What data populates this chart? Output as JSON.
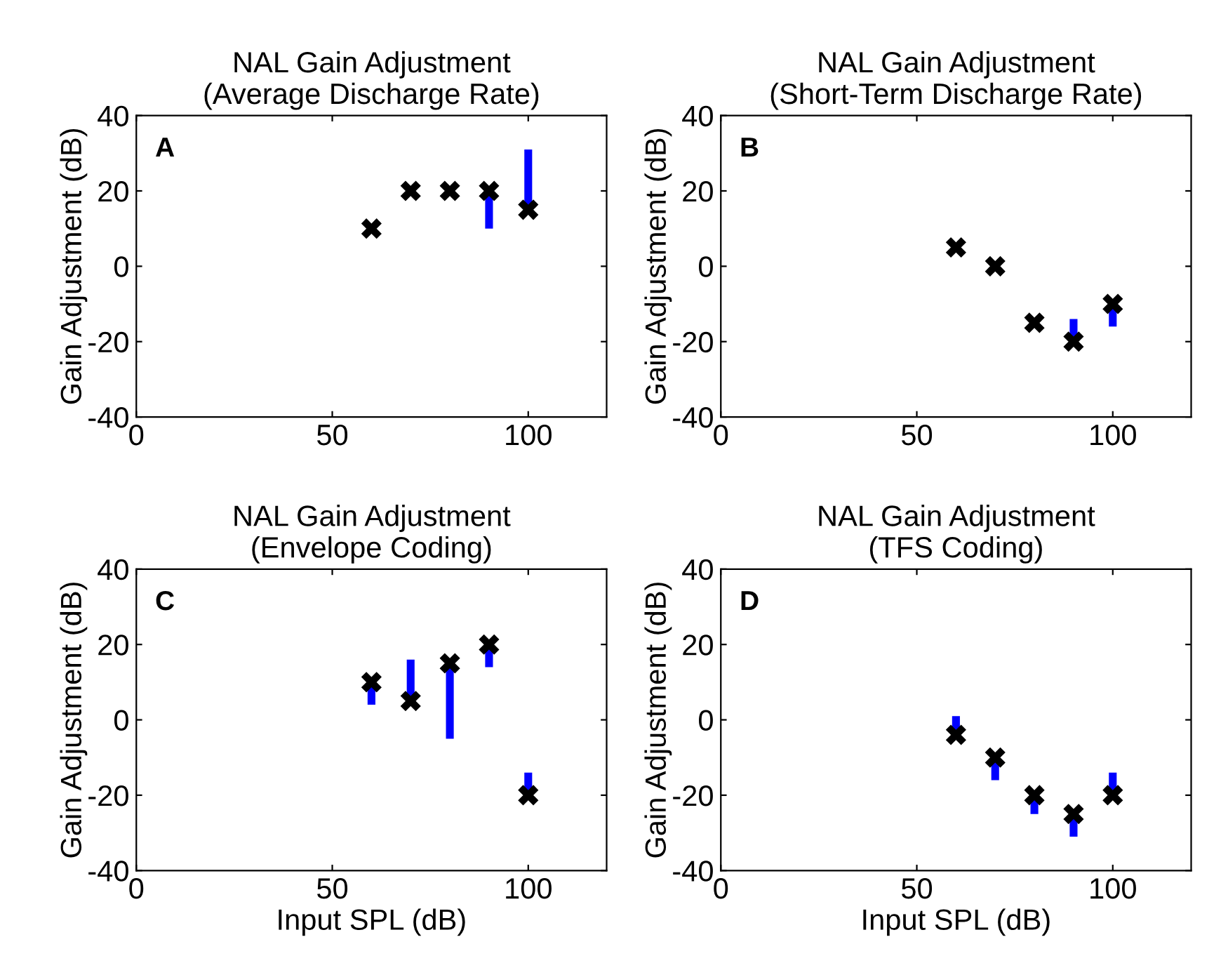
{
  "chart_data": [
    {
      "type": "scatter",
      "title": "NAL Gain Adjustment\n(Average Discharge Rate)",
      "ylabel": "Gain Adjustment (dB)",
      "annotations": [
        "A"
      ],
      "x": [
        60,
        70,
        80,
        90,
        100
      ],
      "marker": "cross",
      "color": "#000000",
      "values": [
        10,
        20,
        20,
        20,
        15
      ],
      "errors": [
        null,
        null,
        null,
        [
          10,
          20
        ],
        [
          15,
          31
        ]
      ],
      "xlim": [
        0,
        120
      ],
      "xticks": [
        0,
        50,
        100
      ],
      "ylim": [
        -40,
        40
      ],
      "yticks": [
        -40,
        -20,
        0,
        20,
        40
      ],
      "grid": false,
      "legend": false
    },
    {
      "type": "scatter",
      "title": "NAL Gain Adjustment\n(Short-Term Discharge Rate)",
      "ylabel": "Gain Adjustment (dB)",
      "annotations": [
        "B"
      ],
      "x": [
        60,
        70,
        80,
        90,
        100
      ],
      "marker": "cross",
      "color": "#000000",
      "values": [
        5,
        0,
        -15,
        -20,
        -10
      ],
      "errors": [
        null,
        null,
        null,
        [
          -20,
          -14
        ],
        [
          -16,
          -10
        ]
      ],
      "xlim": [
        0,
        120
      ],
      "xticks": [
        0,
        50,
        100
      ],
      "ylim": [
        -40,
        40
      ],
      "yticks": [
        -40,
        -20,
        0,
        20,
        40
      ],
      "grid": false,
      "legend": false
    },
    {
      "type": "scatter",
      "title": "NAL Gain Adjustment\n(Envelope Coding)",
      "xlabel": "Input SPL (dB)",
      "ylabel": "Gain Adjustment (dB)",
      "annotations": [
        "C"
      ],
      "x": [
        60,
        70,
        80,
        90,
        100
      ],
      "marker": "cross",
      "color": "#000000",
      "values": [
        10,
        5,
        15,
        20,
        -20
      ],
      "errors": [
        [
          4,
          10
        ],
        [
          5,
          16
        ],
        [
          -5,
          15
        ],
        [
          14,
          20
        ],
        [
          -20,
          -14
        ]
      ],
      "xlim": [
        0,
        120
      ],
      "xticks": [
        0,
        50,
        100
      ],
      "ylim": [
        -40,
        40
      ],
      "yticks": [
        -40,
        -20,
        0,
        20,
        40
      ],
      "grid": false,
      "legend": false
    },
    {
      "type": "scatter",
      "title": "NAL Gain Adjustment\n(TFS Coding)",
      "xlabel": "Input SPL (dB)",
      "ylabel": "Gain Adjustment (dB)",
      "annotations": [
        "D"
      ],
      "x": [
        60,
        70,
        80,
        90,
        100
      ],
      "marker": "cross",
      "color": "#000000",
      "values": [
        -4,
        -10,
        -20,
        -25,
        -20
      ],
      "errors": [
        [
          -4,
          1
        ],
        [
          -16,
          -10
        ],
        [
          -25,
          -20
        ],
        [
          -31,
          -25
        ],
        [
          -20,
          -14
        ]
      ],
      "xlim": [
        0,
        120
      ],
      "xticks": [
        0,
        50,
        100
      ],
      "ylim": [
        -40,
        40
      ],
      "yticks": [
        -40,
        -20,
        0,
        20,
        40
      ],
      "grid": false,
      "legend": false
    }
  ]
}
